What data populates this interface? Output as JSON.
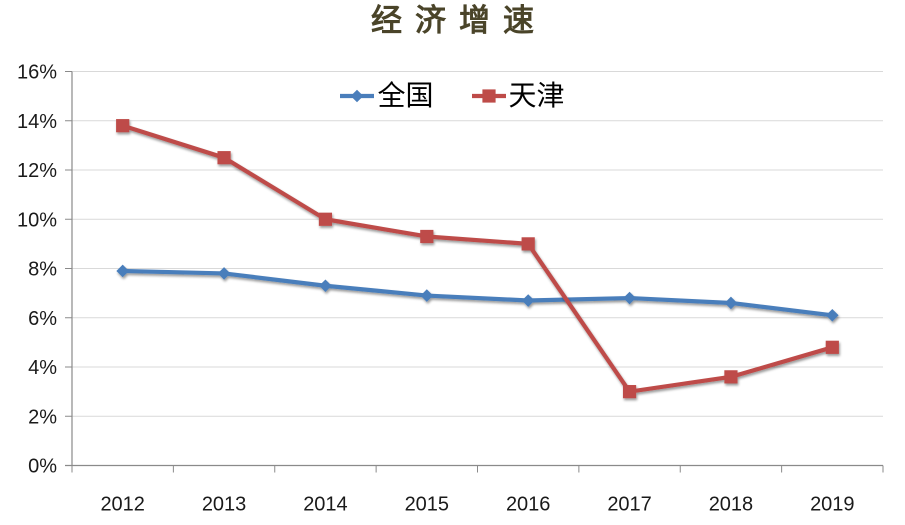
{
  "chart_data": {
    "type": "line",
    "title": "经济增速",
    "categories": [
      "2012",
      "2013",
      "2014",
      "2015",
      "2016",
      "2017",
      "2018",
      "2019"
    ],
    "series": [
      {
        "name": "全国",
        "color": "#4A7EBB",
        "marker": "diamond",
        "values": [
          7.9,
          7.8,
          7.3,
          6.9,
          6.7,
          6.8,
          6.6,
          6.1
        ]
      },
      {
        "name": "天津",
        "color": "#BE4B48",
        "marker": "square",
        "values": [
          13.8,
          12.5,
          10.0,
          9.3,
          9.0,
          3.0,
          3.6,
          4.8
        ]
      }
    ],
    "xlabel": "",
    "ylabel": "",
    "ylim": [
      0,
      16
    ],
    "ytick_step": 2,
    "ytick_labels": [
      "0%",
      "2%",
      "4%",
      "6%",
      "8%",
      "10%",
      "12%",
      "14%",
      "16%"
    ],
    "grid": true,
    "legend_position": "top-center",
    "colors": {
      "title": "#4A4429",
      "gridline": "#D9D9D9",
      "axis": "#8A8A8A",
      "tick_label": "#1A1A1A"
    }
  }
}
